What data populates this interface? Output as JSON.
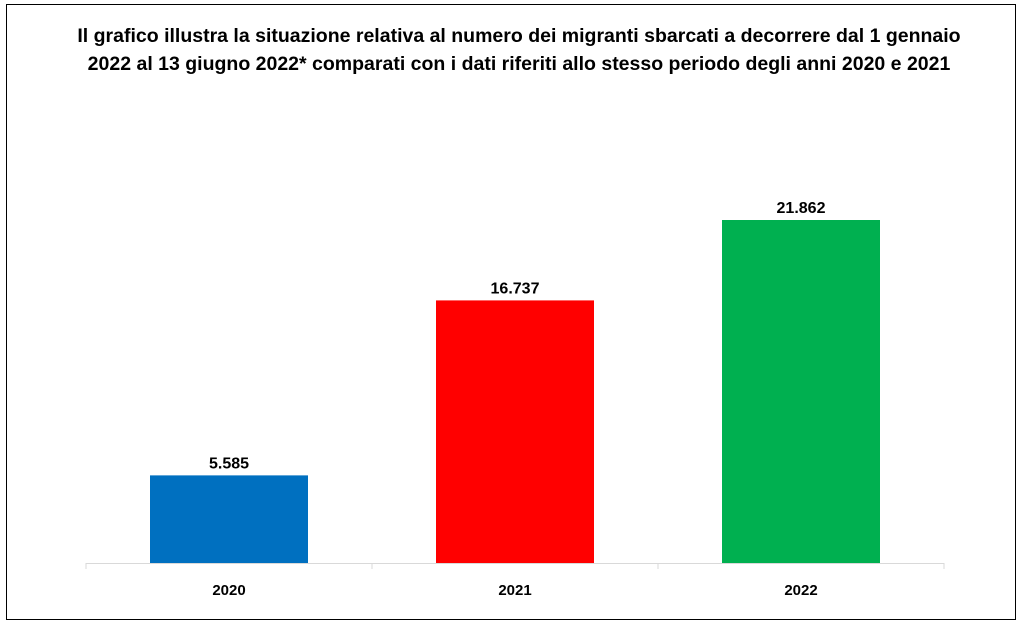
{
  "chart_data": {
    "type": "bar",
    "title": "Il grafico illustra la situazione relativa al numero dei migranti sbarcati a decorrere dal 1 gennaio 2022 al 13 giugno 2022* comparati con i dati riferiti allo stesso periodo degli anni 2020 e 2021",
    "categories": [
      "2020",
      "2021",
      "2022"
    ],
    "values": [
      5585,
      16737,
      21862
    ],
    "value_labels": [
      "5.585",
      "16.737",
      "21.862"
    ],
    "colors": [
      "#0070C0",
      "#FF0000",
      "#00B050"
    ],
    "xlabel": "",
    "ylabel": "",
    "ylim": [
      0,
      25000
    ],
    "grid": false,
    "legend": "none"
  }
}
